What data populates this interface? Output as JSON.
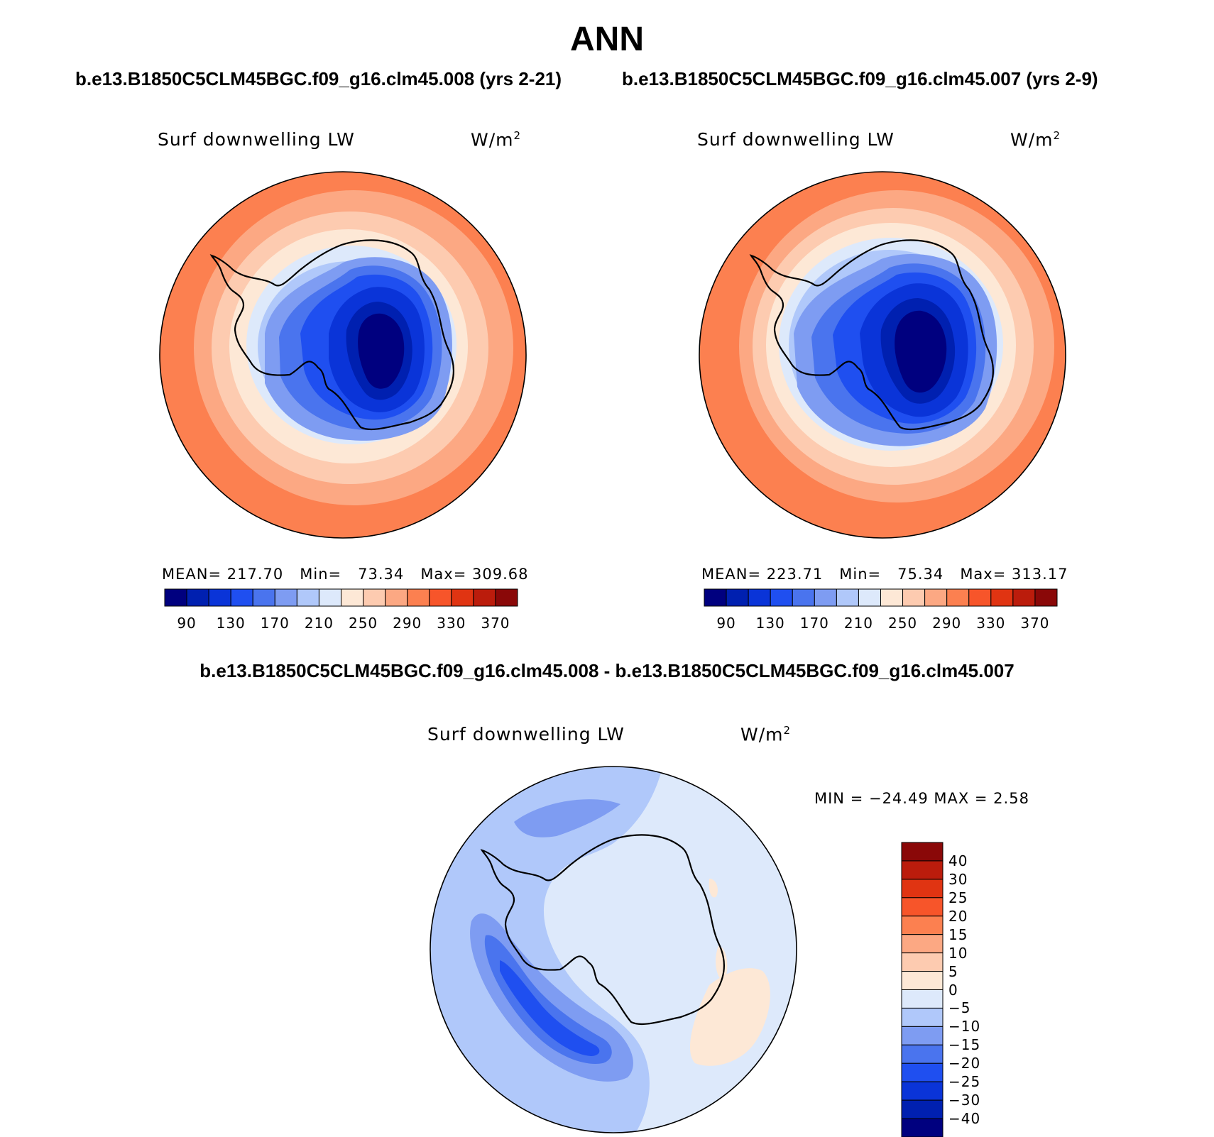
{
  "title": "ANN",
  "panels": [
    {
      "case": "b.e13.B1850C5CLM45BGC.f09_g16.clm45.008 (yrs 2-21)",
      "variable": "Surf downwelling LW",
      "units": "W/m",
      "units_sup": "2",
      "stats": {
        "mean_label": "MEAN=",
        "mean": "217.70",
        "min_label": "Min=",
        "min": "73.34",
        "max_label": "Max=",
        "max": "309.68"
      }
    },
    {
      "case": "b.e13.B1850C5CLM45BGC.f09_g16.clm45.007 (yrs 2-9)",
      "variable": "Surf downwelling LW",
      "units": "W/m",
      "units_sup": "2",
      "stats": {
        "mean_label": "MEAN=",
        "mean": "223.71",
        "min_label": "Min=",
        "min": "75.34",
        "max_label": "Max=",
        "max": "313.17"
      }
    }
  ],
  "abs_colorbar": {
    "colors": [
      "#00007f",
      "#0020b0",
      "#0a34d8",
      "#1f4ff0",
      "#4a74ee",
      "#7e9cf2",
      "#b0c8fa",
      "#dde9fb",
      "#fde8d6",
      "#fdcbb0",
      "#fca883",
      "#fc8050",
      "#f7552a",
      "#e03412",
      "#bb1c0c",
      "#8a0808"
    ],
    "tick_labels": [
      "90",
      "130",
      "170",
      "210",
      "250",
      "290",
      "330",
      "370"
    ]
  },
  "difference": {
    "title": "b.e13.B1850C5CLM45BGC.f09_g16.clm45.008 - b.e13.B1850C5CLM45BGC.f09_g16.clm45.007",
    "variable": "Surf downwelling LW",
    "units": "W/m",
    "units_sup": "2",
    "stats": "MIN = −24.49 MAX =    2.58",
    "colors_top_down": [
      "#8a0808",
      "#bb1c0c",
      "#e03412",
      "#f7552a",
      "#fc8050",
      "#fca883",
      "#fdcbb0",
      "#fde8d6",
      "#dde9fb",
      "#b0c8fa",
      "#7e9cf2",
      "#4a74ee",
      "#1f4ff0",
      "#0a34d8",
      "#0020b0",
      "#00007f"
    ],
    "tick_labels": [
      "40",
      "30",
      "25",
      "20",
      "15",
      "10",
      "5",
      "0",
      "−5",
      "−10",
      "−15",
      "−20",
      "−25",
      "−30",
      "−40"
    ]
  }
}
